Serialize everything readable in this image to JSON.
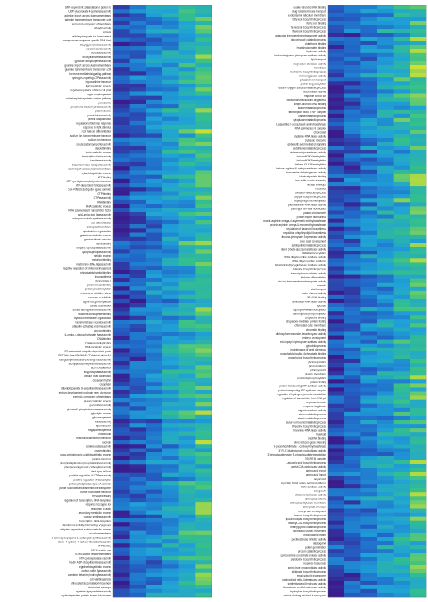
{
  "chart_data": [
    {
      "type": "heatmap",
      "colormap": [
        "#3b1c8c",
        "#2166c8",
        "#1fa2d8",
        "#34c08a",
        "#f4e71c"
      ],
      "columns": 6,
      "rows": [
        "SRP-dependent cotranslational protein ta",
        "UDP-glucuronate 4-epimerase activity",
        "adenine import across plasma membrane",
        "adenine transmembrane transporter activ",
        "anchored component of membrane",
        "catalytic activity",
        "cell wall",
        "cellular phosphate ion homeostasis",
        "core promoter sequence-specific DNA bindi",
        "diacylglycerol kinase activity",
        "electron carrier activity",
        "fucosidase activity",
        "fucosyltransferase activity",
        "glycerate dehydrogenase activity",
        "guanine import across plasma membrane",
        "guanine transmembrane transporter activ",
        "hormone-mediated signaling pathway",
        "hydrogen-exporting ATPase activity",
        "hypoxanthine transport",
        "lipid metabolic process",
        "negative regulation of stem cell prolif",
        "organ morphogenesis",
        "oxidative photosynthetic carbon pathway",
        "peroxisome",
        "phosphoric diester hydrolase activity",
        "plasmodesma",
        "protein kinase activity",
        "protein ubiquitination",
        "regulation of defense response",
        "response to light stimulus",
        "root hair cell differentiation",
        "sodium ion transmembrane transport",
        "sodium ion transport",
        "solute:cation symporter activity",
        "steroid binding",
        "toxin catabolic process",
        "transcription factor activity",
        "transferase activity",
        "transmembrane transporter activity",
        "uracil import across plasma membrane",
        "xylan biosynthetic process",
        "ATP binding",
        "ATP hydrolysis coupled proton transport",
        "ATP-dependent helicase activity",
        "Cul4-RING E3 ubiquitin ligase complex",
        "GTP binding",
        "GTPase activity",
        "RNA binding",
        "RNA catabolic process",
        "RNA polymerase II transcription factor",
        "acid-amino acid ligase activity",
        "adenylosuccinate synthase activity",
        "cell differentiation",
        "chloroplast membrane",
        "cytoskeleton organization",
        "galactose catabolic process",
        "gamma-tubulin complex",
        "heme binding",
        "inorganic diphosphatase activity",
        "lysophospholipase activity",
        "meiotic process",
        "metal ion binding",
        "methionine-tRNA ligase activity",
        "negative regulation of photomorphogenesis",
        "phosphatidylinositol binding",
        "photosynthesis",
        "photosystem II",
        "protein kinase binding",
        "protein phosphorylation",
        "response to oxidative stress",
        "response to cytokinin",
        "signal recognition particle",
        "sulfate assimilation",
        "sulfate adenylyltransferase activity",
        "thiamine diphosphate binding",
        "thylakoid membrane organization",
        "transmembrane receptor activity",
        "ubiquitin-activating enzyme activity",
        "zinc ion binding",
        "4-amino-4-deoxychorismate lyase activity",
        "DNA binding",
        "DNA endoreduplication",
        "DNA metabolic process",
        "ER-associated ubiquitin-dependent protei",
        "GDP-Man:Man3GlcNAc2-PP-dolichol alpha-1,6",
        "Ran guanyl-nucleotide exchange factor activity",
        "acetylglucosaminyltransferase activity",
        "actin cytoskeleton",
        "acylphosphatase activity",
        "cellular heat acclimation",
        "circadian rhythm",
        "cytoplasm",
        "dihydrolipoamide S-acetyltransferase activity",
        "embryo development ending in seed dormancy",
        "extrinsic component of membrane",
        "glucan catabolic process",
        "glucosidase activity",
        "glucose-6-phosphate isomerase activity",
        "glycolytic process",
        "gluconeogenesis",
        "kinase activity",
        "lipid transport",
        "megagametogenesis",
        "microtubule",
        "mitochondrial electron transport",
        "nucleoid",
        "oxidoreductase activity",
        "oxygen binding",
        "para-aminobenzoic acid biosynthetic process",
        "peptide transport",
        "phosphatidylinositol phosphate kinase activity",
        "phosphoenolpyruvate carboxylase activity",
        "plant-type cell wall",
        "positive regulation of GTPase activity",
        "positive regulation of transcription",
        "protein phosphatase type 2A complex",
        "purine nucleobase transmembrane transporter",
        "purine nucleobase transport",
        "rRNA processing",
        "regulation of transcription, DNA-templated",
        "response to copper ion",
        "response to auxin",
        "secondary metabolic process",
        "sucrose synthase activity",
        "transcription, DNA-templated",
        "transferase activity, transferring acyl groups",
        "ubiquitin-dependent protein catabolic process",
        "vacuolar membrane",
        "1-aminocyclopropane-1-carboxylate synthase activity",
        "2-oxo-4-hydroxy-4-carboxy-5-ureidoimidazoline",
        "ATP binding",
        "COPII vesicle coat",
        "COPII-coated vesicle membrane",
        "GTP cyclohydrolase I activity",
        "NAD+ ADP-ribosyltransferase activity",
        "arginine biosynthetic process",
        "carbon-sulfur lyase activity",
        "carotene beta-ring hydroxylase activity",
        "cell wall biogenesis",
        "chloroplast accumulation movement",
        "chloroplast envelope",
        "cysteine-type peptidase activity",
        "cyclin-dependent protein kinase holoenzyme"
      ],
      "values": []
    },
    {
      "type": "heatmap",
      "colormap": [
        "#3b1c8c",
        "#2166c8",
        "#1fa2d8",
        "#34c08a",
        "#f4e71c"
      ],
      "columns": 6,
      "rows": [
        "double-stranded DNA binding",
        "drug transmembrane transport",
        "endoplasmic reticulum membrane",
        "fatty acid biosynthetic process",
        "ferric iron binding",
        "ferredoxin biosynthetic process",
        "flavonoid biosynthetic process",
        "galactose transmembrane transporter activity",
        "glucosinolate catabolic process",
        "glutathione binding",
        "heat-shock protein binding",
        "hydrolase activity",
        "imidazoleglycerol-phosphate synthase activity",
        "lipid transport",
        "magnesium chelatase activity",
        "membrane",
        "methionine biosynthetic process",
        "monooxygenase activity",
        "potassium ion transport",
        "protein deglycosylation",
        "reactive oxygen species metabolic process",
        "recombinase activity",
        "response to iron ion",
        "ribosomal small subunit biogenesis",
        "single-stranded DNA binding",
        "starch metabolic process",
        "transcription factor TFIIF complex",
        "valine metabolic process",
        "xyloglucan metabolic process",
        "L-aspartate:2-oxoglutarate aminotransferase",
        "RNA polymerase II complex",
        "chloroplast",
        "cysteine-tRNA ligase activity",
        "cytosolic ribosome",
        "gibberellic acid mediated signaling",
        "glutathione metabolic process",
        "histone acetyltransferase activity",
        "histone H3-K4 methylation",
        "histone H3-K9 methylation",
        "histone H3-K36 methylation",
        "histone arginine N-methyltransferase activity",
        "homoserine dehydrogenase activity",
        "identical protein binding",
        "iron-sulfur cluster assembly",
        "nuclear envelope",
        "nucleolus",
        "oxidation-reduction process",
        "oxylipin biosynthetic process",
        "peptidyl-arginine methylation",
        "phenylalanine-tRNA ligase activity",
        "plant-type cell wall modification",
        "plastid chromosome",
        "protein import into nucleus",
        "protein-arginine omega-N asymmetric methyltransferase",
        "protein-arginine omega-N monomethyltransferase",
        "regulation of flavonoid biosynthesis",
        "regulation of sphingolipid biosynthesis",
        "ribulose-phosphate 3-epimerase activity",
        "seed coat development",
        "sphingolipid metabolic process",
        "sterol 3-beta-glucosyltransferase activity",
        "tRNA aminoacylation",
        "tRNA dihydrouridine synthase activity",
        "tRNA dihydrouridine synthesis",
        "tetrahydrofolylpolyglutamate synthase activity",
        "thiamine biosynthetic process",
        "transcription coactivator activity",
        "trichome differentiation",
        "zinc ion transmembrane transporter activity",
        "vacuole",
        "vital transport",
        "water channel activity",
        "5S rRNA binding",
        "aminoacyl-tRNA ligase activity",
        "apoplast",
        "aspartyl-tRNA aminoacylation",
        "carbohydrate phosphorylation",
        "chaperone binding",
        "chaperone-mediated protein folding",
        "chloroplast outer membrane",
        "chromatin binding",
        "diphosphomevalonate decarboxylase activity",
        "embryo development",
        "ent-copalyl diphosphate synthase activity",
        "glycolytic process",
        "maintenance of seed dormancy",
        "phosphatidylinositol-4-phosphate binding",
        "phospholipid biosynthetic process",
        "photorespiration",
        "photosynthesis",
        "photosystem I",
        "plasma membrane",
        "protein dephosphorylation",
        "protein folding",
        "protein-transporting ATP synthase activity",
        "proton-transporting ATP synthase complex",
        "regulation of hydrogen peroxide metabolism",
        "regulation of transcription from RNA pol",
        "response to auxin",
        "response to glucose",
        "signal transducer activity",
        "starch catabolic process",
        "starch metabolic process",
        "sulfur compound metabolic process",
        "threonine biosynthetic process",
        "threonine-tRNA ligase activity",
        "thylakoid",
        "snoRNA binding",
        "virus induced gene silencing",
        "3-phosphoshikimate 1-carboxyvinyltransferase",
        "3'(2'),5'-bisphosphate nucleotidase activity",
        "3'-phosphoadenosine 5'-phosphosulfate metabolism",
        "ESCRT III complex",
        "L-ascorbic acid biosynthetic process",
        "acetyl-CoA carboxylase activity",
        "amino acid export",
        "amino acid import",
        "amyloplast",
        "aspartate family amino acid biosynthesis",
        "biotin synthase activity",
        "cell growth",
        "chalcone isomerase activity",
        "chloroplast stroma",
        "chloroplast thylakoid membrane",
        "chloroplast envelope",
        "embryo sac development",
        "flavonol biosynthetic process",
        "glucuronoxylan biosynthetic process",
        "malonyl-CoA biosynthetic process",
        "methylglyoxal catabolic process",
        "microtubule-based movement",
        "mitochondrial matrix",
        "pectinesterase inhibitor activity",
        "plastoquinol",
        "pollen germination",
        "protein catabolic process",
        "pyridoxamine-phosphate oxidase activity",
        "pyridoxine biosynthetic process",
        "response to sucrose",
        "serine-type endopeptidase activity",
        "shikimate biosynthetic process",
        "small-subunit processome",
        "sphingolipid delta-4 desaturase activity",
        "synthetic steroid hydrolase activity",
        "thioredoxin-disulfide reductase activity",
        "tryptophan biosynthetic process",
        "vesicle docking involved in exocytosis"
      ],
      "values": []
    }
  ]
}
